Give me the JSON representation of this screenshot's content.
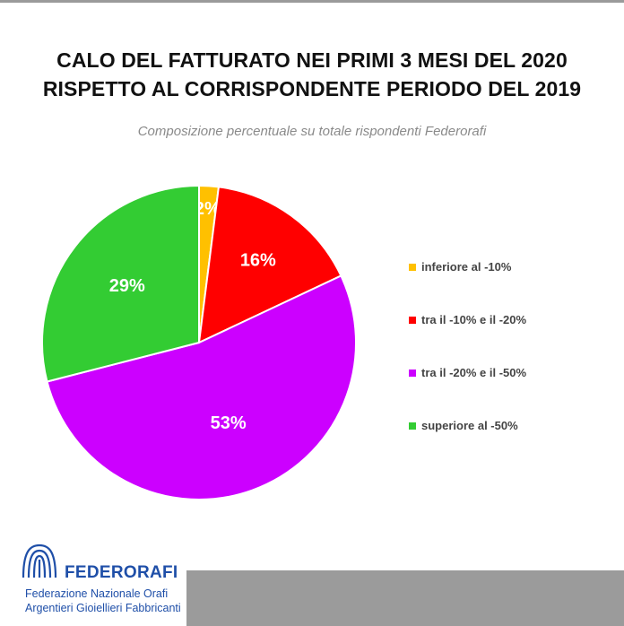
{
  "chart_data": {
    "type": "pie",
    "title": [
      "CALO DEL FATTURATO NEI PRIMI 3 MESI DEL 2020",
      "RISPETTO AL CORRISPONDENTE PERIODO DEL 2019"
    ],
    "subtitle": "Composizione percentuale su totale rispondenti Federorafi",
    "slices": [
      {
        "label": "inferiore al -10%",
        "value": 2,
        "display": "2%",
        "color": "#ffc000"
      },
      {
        "label": "tra il -10% e il -20%",
        "value": 16,
        "display": "16%",
        "color": "#ff0000"
      },
      {
        "label": "tra il -20% e il -50%",
        "value": 53,
        "display": "53%",
        "color": "#cc00ff"
      },
      {
        "label": "superiore al -50%",
        "value": 29,
        "display": "29%",
        "color": "#33cc33"
      }
    ],
    "start_angle_deg": 0,
    "direction": "clockwise",
    "legend_position": "right"
  },
  "branding": {
    "name": "FEDERORAFI",
    "line1": "Federazione Nazionale Orafi",
    "line2": "Argentieri Gioiellieri Fabbricanti",
    "color": "#1f4fa8",
    "icon": "columns-logo-icon"
  }
}
